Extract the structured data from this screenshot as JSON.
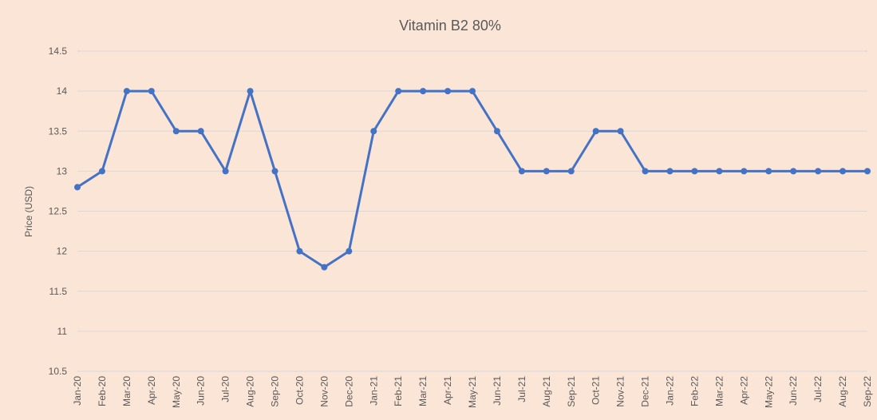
{
  "chart_data": {
    "type": "line",
    "title": "Vitamin B2 80%",
    "y_label": "Price (USD)",
    "categories": [
      "Jan-20",
      "Feb-20",
      "Mar-20",
      "Apr-20",
      "May-20",
      "Jun-20",
      "Jul-20",
      "Aug-20",
      "Sep-20",
      "Oct-20",
      "Nov-20",
      "Dec-20",
      "Jan-21",
      "Feb-21",
      "Mar-21",
      "Apr-21",
      "May-21",
      "Jun-21",
      "Jul-21",
      "Aug-21",
      "Sep-21",
      "Oct-21",
      "Nov-21",
      "Dec-21",
      "Jan-22",
      "Feb-22",
      "Mar-22",
      "Apr-22",
      "May-22",
      "Jun-22",
      "Jul-22",
      "Aug-22",
      "Sep-22"
    ],
    "series": [
      {
        "name": "Vitamin B2 80%",
        "color": "#4472c4",
        "values": [
          12.8,
          13,
          14,
          14,
          13.5,
          13.5,
          13,
          14,
          13,
          12,
          11.8,
          12,
          13.5,
          14,
          14,
          14,
          14,
          13.5,
          13,
          13,
          13,
          13.5,
          13.5,
          13,
          13,
          13,
          13,
          13,
          13,
          13,
          13,
          13,
          13
        ]
      }
    ],
    "ylim": [
      10.5,
      14.5
    ],
    "yticks": [
      10.5,
      11,
      11.5,
      12,
      12.5,
      13,
      13.5,
      14,
      14.5
    ],
    "grid": true
  }
}
